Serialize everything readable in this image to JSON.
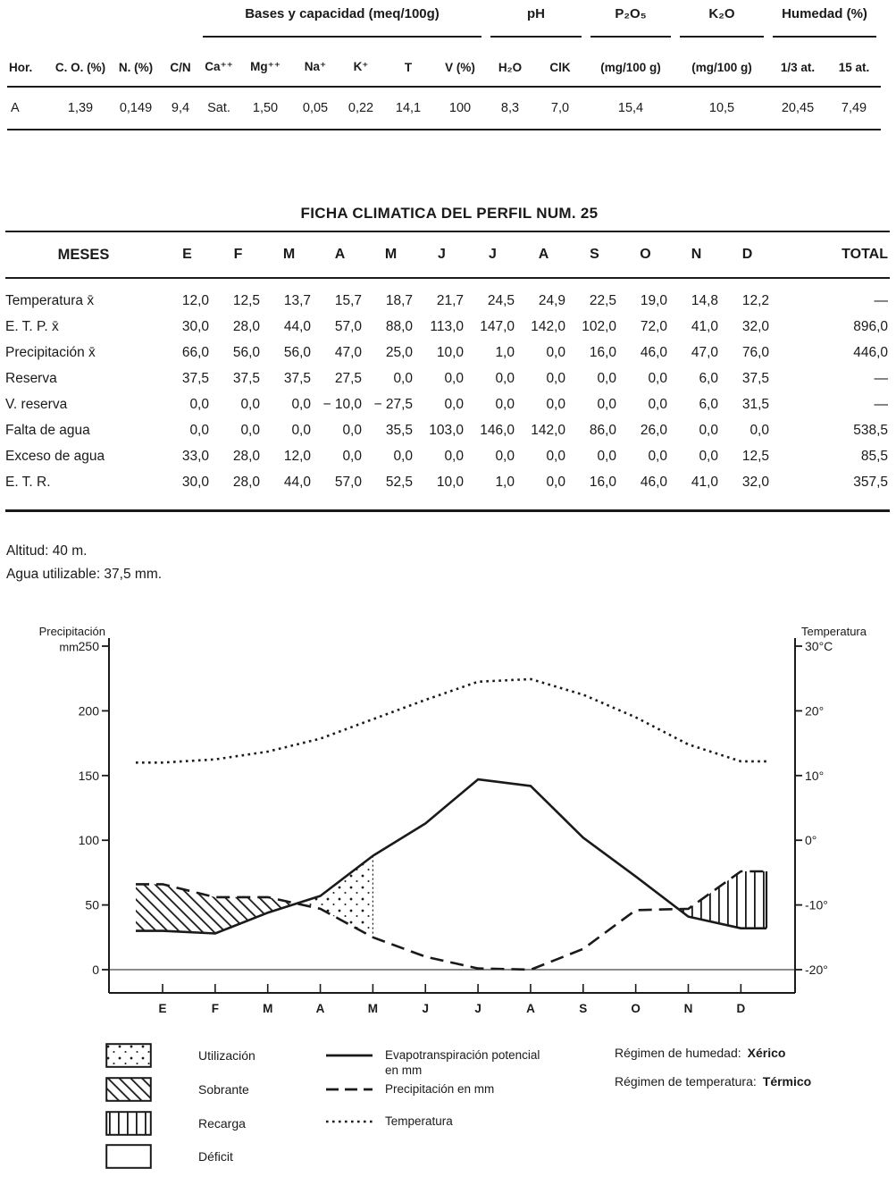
{
  "soil_table": {
    "groups": [
      {
        "label": "",
        "span": 4,
        "underline": false
      },
      {
        "label": "Bases y capacidad (meq/100g)",
        "span": 6,
        "underline": true
      },
      {
        "label": "pH",
        "span": 2,
        "underline": true
      },
      {
        "label": "P₂O₅",
        "span": 1,
        "underline": true
      },
      {
        "label": "K₂O",
        "span": 1,
        "underline": true
      },
      {
        "label": "Humedad (%)",
        "span": 2,
        "underline": true
      }
    ],
    "columns": [
      "Hor.",
      "C. O. (%)",
      "N. (%)",
      "C/N",
      "Ca⁺⁺",
      "Mg⁺⁺",
      "Na⁺",
      "K⁺",
      "T",
      "V (%)",
      "H₂O",
      "ClK",
      "(mg/100 g)",
      "(mg/100 g)",
      "1/3 at.",
      "15 at."
    ],
    "rows": [
      [
        "A",
        "1,39",
        "0,149",
        "9,4",
        "Sat.",
        "1,50",
        "0,05",
        "0,22",
        "14,1",
        "100",
        "8,3",
        "7,0",
        "15,4",
        "10,5",
        "20,45",
        "7,49"
      ]
    ]
  },
  "climate_table": {
    "title": "FICHA CLIMATICA DEL PERFIL NUM. 25",
    "header": [
      "MESES",
      "E",
      "F",
      "M",
      "A",
      "M",
      "J",
      "J",
      "A",
      "S",
      "O",
      "N",
      "D",
      "TOTAL"
    ],
    "rows": [
      {
        "label": "Temperatura x̄",
        "values": [
          "12,0",
          "12,5",
          "13,7",
          "15,7",
          "18,7",
          "21,7",
          "24,5",
          "24,9",
          "22,5",
          "19,0",
          "14,8",
          "12,2"
        ],
        "total": "—"
      },
      {
        "label": "E. T. P. x̄",
        "values": [
          "30,0",
          "28,0",
          "44,0",
          "57,0",
          "88,0",
          "113,0",
          "147,0",
          "142,0",
          "102,0",
          "72,0",
          "41,0",
          "32,0"
        ],
        "total": "896,0"
      },
      {
        "label": "Precipitación x̄",
        "values": [
          "66,0",
          "56,0",
          "56,0",
          "47,0",
          "25,0",
          "10,0",
          "1,0",
          "0,0",
          "16,0",
          "46,0",
          "47,0",
          "76,0"
        ],
        "total": "446,0"
      },
      {
        "label": "Reserva",
        "values": [
          "37,5",
          "37,5",
          "37,5",
          "27,5",
          "0,0",
          "0,0",
          "0,0",
          "0,0",
          "0,0",
          "0,0",
          "6,0",
          "37,5"
        ],
        "total": "—"
      },
      {
        "label": "V. reserva",
        "values": [
          "0,0",
          "0,0",
          "0,0",
          "− 10,0",
          "− 27,5",
          "0,0",
          "0,0",
          "0,0",
          "0,0",
          "0,0",
          "6,0",
          "31,5"
        ],
        "total": "—"
      },
      {
        "label": "Falta de agua",
        "values": [
          "0,0",
          "0,0",
          "0,0",
          "0,0",
          "35,5",
          "103,0",
          "146,0",
          "142,0",
          "86,0",
          "26,0",
          "0,0",
          "0,0"
        ],
        "total": "538,5"
      },
      {
        "label": "Exceso de agua",
        "values": [
          "33,0",
          "28,0",
          "12,0",
          "0,0",
          "0,0",
          "0,0",
          "0,0",
          "0,0",
          "0,0",
          "0,0",
          "0,0",
          "12,5"
        ],
        "total": "85,5"
      },
      {
        "label": "E. T. R.",
        "values": [
          "30,0",
          "28,0",
          "44,0",
          "57,0",
          "52,5",
          "10,0",
          "1,0",
          "0,0",
          "16,0",
          "46,0",
          "41,0",
          "32,0"
        ],
        "total": "357,5"
      }
    ]
  },
  "notes": {
    "altitude": "Altitud: 40 m.",
    "water": "Agua utilizable: 37,5 mm."
  },
  "chart_data": {
    "type": "line",
    "x_categories": [
      "E",
      "F",
      "M",
      "A",
      "M",
      "J",
      "J",
      "A",
      "S",
      "O",
      "N",
      "D"
    ],
    "left_axis": {
      "title_line1": "Precipitación",
      "title_line2": "mm",
      "unit": "mm",
      "ticks": [
        250,
        200,
        150,
        100,
        50,
        0
      ],
      "range": [
        0,
        250
      ]
    },
    "right_axis": {
      "title": "Temperatura",
      "unit": "°C",
      "ticks": [
        30,
        20,
        10,
        0,
        -10,
        -20
      ],
      "tick_labels": [
        "30°C",
        "20°",
        "10°",
        "0°",
        "-10°",
        "-20°"
      ],
      "range": [
        -20,
        30
      ]
    },
    "series": [
      {
        "name": "Evapotranspiración potencial en mm",
        "axis": "left",
        "style": "solid",
        "values": [
          30,
          28,
          44,
          57,
          88,
          113,
          147,
          142,
          102,
          72,
          41,
          32
        ]
      },
      {
        "name": "Precipitación en mm",
        "axis": "left",
        "style": "dashed",
        "values": [
          66,
          56,
          56,
          47,
          25,
          10,
          1,
          0,
          16,
          46,
          47,
          76
        ]
      },
      {
        "name": "Temperatura",
        "axis": "right",
        "style": "dotted",
        "values": [
          12.0,
          12.5,
          13.7,
          15.7,
          18.7,
          21.7,
          24.5,
          24.9,
          22.5,
          19.0,
          14.8,
          12.2
        ]
      }
    ],
    "regions": [
      {
        "name": "Sobrante",
        "pattern": "diagonal",
        "months": "E–M",
        "between": "Precipitación > E.T.P."
      },
      {
        "name": "Utilización",
        "pattern": "dots",
        "months": "M–M",
        "between": "E.T.P. > Precipitación (uso de reserva)"
      },
      {
        "name": "Déficit",
        "pattern": "none",
        "months": "M–N",
        "between": "E.T.P. > Precipitación"
      },
      {
        "name": "Recarga",
        "pattern": "vertical",
        "months": "N–D",
        "between": "Precipitación > E.T.P."
      }
    ],
    "grid": "off",
    "legend_position": "below"
  },
  "legend": {
    "areas": [
      {
        "label": "Utilización",
        "pattern": "dots"
      },
      {
        "label": "Sobrante",
        "pattern": "diagonal"
      },
      {
        "label": "Recarga",
        "pattern": "vertical"
      },
      {
        "label": "Déficit",
        "pattern": "none"
      }
    ],
    "lines": [
      {
        "label": "Evapotranspiración potencial en mm",
        "style": "solid"
      },
      {
        "label": "Precipitación en mm",
        "style": "dashed"
      },
      {
        "label": "Temperatura",
        "style": "dotted"
      }
    ],
    "regimes": [
      {
        "label": "Régimen de humedad:",
        "value": "Xérico"
      },
      {
        "label": "Régimen de temperatura:",
        "value": "Térmico"
      }
    ]
  }
}
